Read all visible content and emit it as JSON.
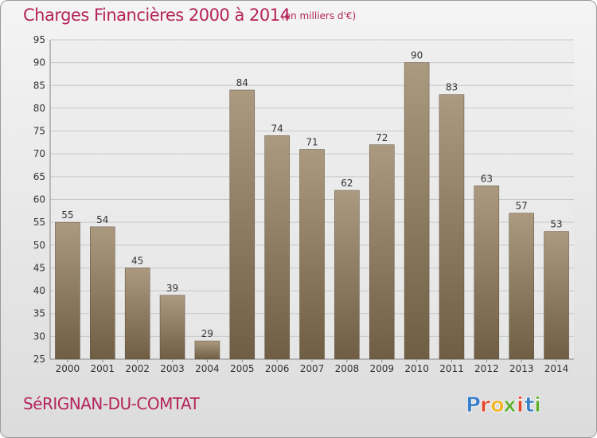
{
  "header": {
    "title": "Charges Financières 2000 à 2014",
    "unit": "(en milliers d'€)"
  },
  "footer": {
    "commune": "SéRIGNAN-DU-COMTAT",
    "brand_letters": [
      "P",
      "r",
      "o",
      "x",
      "i",
      "t",
      "i"
    ]
  },
  "colors": {
    "title": "#b5245a",
    "bar_top": "#ab9a80",
    "bar_bottom": "#6f5e44",
    "grid": "#c8c8c8",
    "brand": [
      "#3a7fc9",
      "#e1462c",
      "#f0b323",
      "#5fae2f",
      "#e1462c",
      "#3a7fc9",
      "#5fae2f"
    ]
  },
  "chart_data": {
    "type": "bar",
    "categories": [
      "2000",
      "2001",
      "2002",
      "2003",
      "2004",
      "2005",
      "2006",
      "2007",
      "2008",
      "2009",
      "2010",
      "2011",
      "2012",
      "2013",
      "2014"
    ],
    "values": [
      55,
      54,
      45,
      39,
      29,
      84,
      74,
      71,
      62,
      72,
      90,
      83,
      63,
      57,
      53
    ],
    "data_labels": [
      "55",
      "54",
      "45",
      "39",
      "29",
      "84",
      "74",
      "71",
      "62",
      "72",
      "90",
      "83",
      "63",
      "57",
      "53"
    ],
    "ylim": [
      25,
      95
    ],
    "yticks": [
      25,
      30,
      35,
      40,
      45,
      50,
      55,
      60,
      65,
      70,
      75,
      80,
      85,
      90,
      95
    ],
    "grid": true,
    "title": "Charges Financières 2000 à 2014",
    "xlabel": "",
    "ylabel": ""
  }
}
